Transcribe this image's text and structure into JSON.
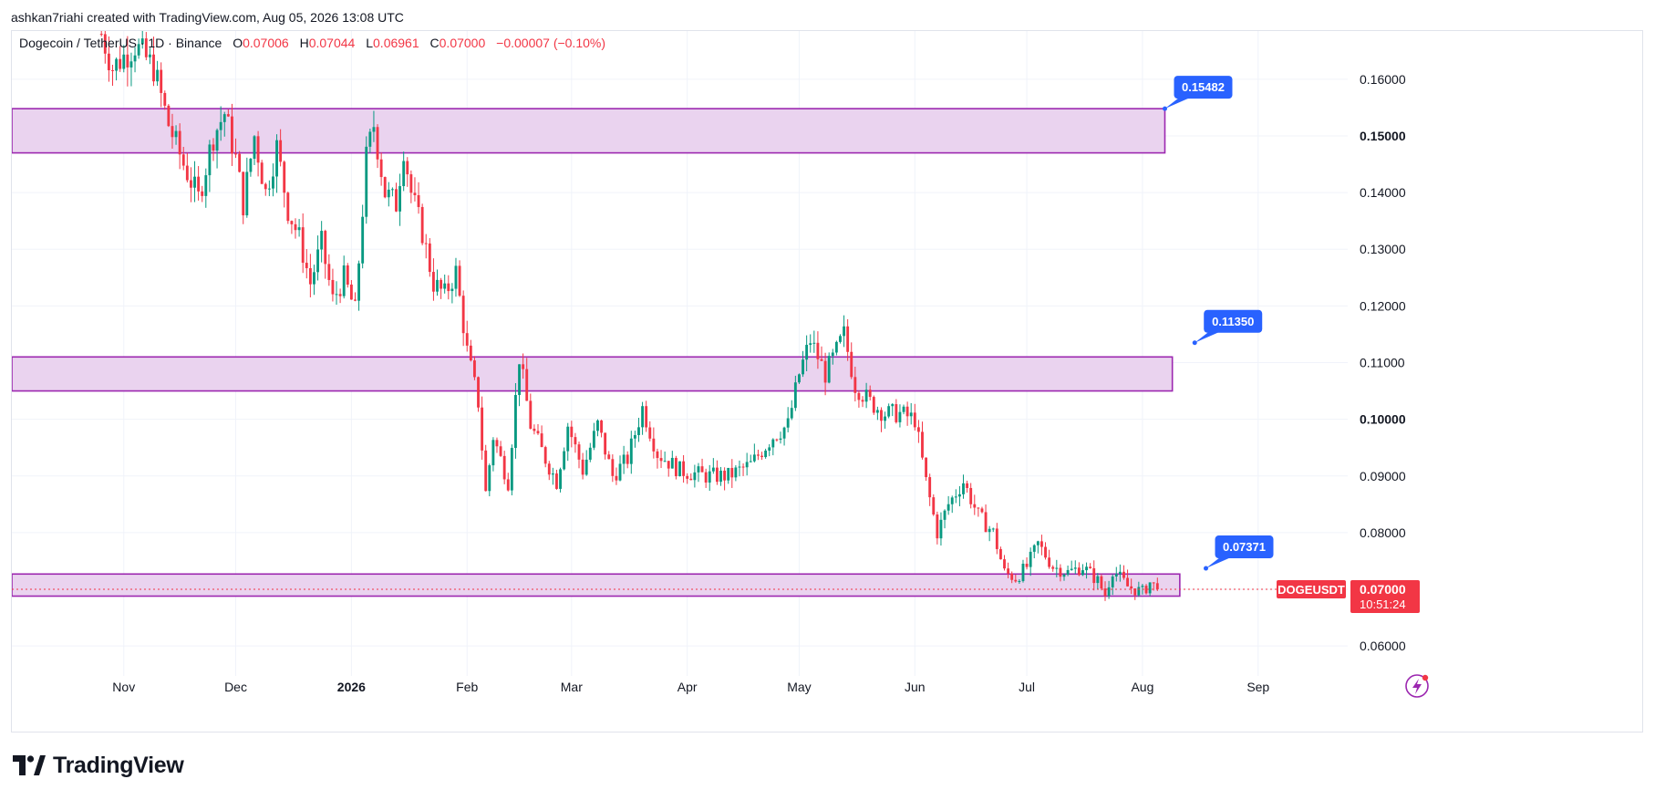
{
  "header": {
    "text": "ashkan7riahi created with TradingView.com, Aug 05, 2026 13:08 UTC"
  },
  "legend": {
    "symbol": "Dogecoin / TetherUS · 1D · Binance",
    "o_label": "O",
    "o_value": "0.07006",
    "h_label": "H",
    "h_value": "0.07044",
    "l_label": "L",
    "l_value": "0.06961",
    "c_label": "C",
    "c_value": "0.07000",
    "change": "−0.00007 (−0.10%)"
  },
  "brand": {
    "name": "TradingView"
  },
  "colors": {
    "up": "#089981",
    "down": "#f23645",
    "zone_fill": "#ead3ef",
    "zone_border": "#9c27b0",
    "callout": "#2962ff",
    "grid": "#f0f3fa",
    "text": "#131722"
  },
  "icons": {
    "logo": "tradingview-logo-icon",
    "flash": "lightning-icon"
  },
  "chart_data": {
    "type": "candlestick",
    "symbol": "DOGEUSDT",
    "interval": "1D",
    "y_ticks": [
      "0.06000",
      "0.07000",
      "0.08000",
      "0.09000",
      "0.10000",
      "0.11000",
      "0.12000",
      "0.13000",
      "0.14000",
      "0.15000",
      "0.16000"
    ],
    "y_ticks_bold": [
      "0.10000",
      "0.15000"
    ],
    "x_ticks": [
      {
        "label": "Nov",
        "date": "2025-11-01"
      },
      {
        "label": "Dec",
        "date": "2025-12-01"
      },
      {
        "label": "2026",
        "date": "2026-01-01",
        "bold": true
      },
      {
        "label": "Feb",
        "date": "2026-02-01"
      },
      {
        "label": "Mar",
        "date": "2026-03-01"
      },
      {
        "label": "Apr",
        "date": "2026-04-01"
      },
      {
        "label": "May",
        "date": "2026-05-01"
      },
      {
        "label": "Jun",
        "date": "2026-06-01"
      },
      {
        "label": "Jul",
        "date": "2026-07-01"
      },
      {
        "label": "Aug",
        "date": "2026-08-01"
      },
      {
        "label": "Sep",
        "date": "2026-09-01"
      }
    ],
    "ylim": [
      0.0515,
      0.1685
    ],
    "xlim": [
      "2025-10-02",
      "2026-09-25"
    ],
    "current_price": {
      "label": "DOGEUSDT",
      "value": "0.07000",
      "countdown": "10:51:24"
    },
    "zones": [
      {
        "top": 0.1548,
        "bottom": 0.147,
        "start": "2025-10-02",
        "end": "2026-08-07"
      },
      {
        "top": 0.111,
        "bottom": 0.105,
        "start": "2025-10-02",
        "end": "2026-08-09"
      },
      {
        "top": 0.0727,
        "bottom": 0.0688,
        "start": "2025-10-02",
        "end": "2026-08-11"
      }
    ],
    "callouts": [
      {
        "label": "0.15482",
        "price": 0.1548,
        "date": "2026-08-07"
      },
      {
        "label": "0.11350",
        "price": 0.1135,
        "date": "2026-08-15"
      },
      {
        "label": "0.07371",
        "price": 0.0737,
        "date": "2026-08-18"
      }
    ],
    "anchors": [
      {
        "date": "2025-10-26",
        "price": 0.168
      },
      {
        "date": "2025-10-29",
        "price": 0.162
      },
      {
        "date": "2025-11-04",
        "price": 0.166
      },
      {
        "date": "2025-11-09",
        "price": 0.162
      },
      {
        "date": "2025-11-13",
        "price": 0.152
      },
      {
        "date": "2025-11-17",
        "price": 0.145
      },
      {
        "date": "2025-11-21",
        "price": 0.139
      },
      {
        "date": "2025-11-25",
        "price": 0.15
      },
      {
        "date": "2025-11-28",
        "price": 0.154
      },
      {
        "date": "2025-12-01",
        "price": 0.146
      },
      {
        "date": "2025-12-03",
        "price": 0.138
      },
      {
        "date": "2025-12-06",
        "price": 0.15
      },
      {
        "date": "2025-12-09",
        "price": 0.14
      },
      {
        "date": "2025-12-12",
        "price": 0.148
      },
      {
        "date": "2025-12-15",
        "price": 0.137
      },
      {
        "date": "2025-12-18",
        "price": 0.132
      },
      {
        "date": "2025-12-21",
        "price": 0.124
      },
      {
        "date": "2025-12-24",
        "price": 0.131
      },
      {
        "date": "2025-12-27",
        "price": 0.121
      },
      {
        "date": "2025-12-30",
        "price": 0.125
      },
      {
        "date": "2026-01-02",
        "price": 0.119
      },
      {
        "date": "2026-01-05",
        "price": 0.146
      },
      {
        "date": "2026-01-07",
        "price": 0.152
      },
      {
        "date": "2026-01-10",
        "price": 0.14
      },
      {
        "date": "2026-01-13",
        "price": 0.138
      },
      {
        "date": "2026-01-15",
        "price": 0.148
      },
      {
        "date": "2026-01-17",
        "price": 0.14
      },
      {
        "date": "2026-01-20",
        "price": 0.133
      },
      {
        "date": "2026-01-23",
        "price": 0.124
      },
      {
        "date": "2026-01-26",
        "price": 0.122
      },
      {
        "date": "2026-01-29",
        "price": 0.126
      },
      {
        "date": "2026-02-01",
        "price": 0.112
      },
      {
        "date": "2026-02-04",
        "price": 0.103
      },
      {
        "date": "2026-02-06",
        "price": 0.087
      },
      {
        "date": "2026-02-08",
        "price": 0.097
      },
      {
        "date": "2026-02-12",
        "price": 0.089
      },
      {
        "date": "2026-02-15",
        "price": 0.111
      },
      {
        "date": "2026-02-18",
        "price": 0.099
      },
      {
        "date": "2026-02-22",
        "price": 0.093
      },
      {
        "date": "2026-02-25",
        "price": 0.089
      },
      {
        "date": "2026-02-28",
        "price": 0.099
      },
      {
        "date": "2026-03-04",
        "price": 0.091
      },
      {
        "date": "2026-03-08",
        "price": 0.099
      },
      {
        "date": "2026-03-12",
        "price": 0.09
      },
      {
        "date": "2026-03-16",
        "price": 0.093
      },
      {
        "date": "2026-03-20",
        "price": 0.102
      },
      {
        "date": "2026-03-24",
        "price": 0.094
      },
      {
        "date": "2026-03-30",
        "price": 0.091
      },
      {
        "date": "2026-04-06",
        "price": 0.09
      },
      {
        "date": "2026-04-12",
        "price": 0.09
      },
      {
        "date": "2026-04-18",
        "price": 0.092
      },
      {
        "date": "2026-04-24",
        "price": 0.097
      },
      {
        "date": "2026-04-28",
        "price": 0.099
      },
      {
        "date": "2026-05-01",
        "price": 0.108
      },
      {
        "date": "2026-05-04",
        "price": 0.114
      },
      {
        "date": "2026-05-08",
        "price": 0.108
      },
      {
        "date": "2026-05-11",
        "price": 0.112
      },
      {
        "date": "2026-05-13",
        "price": 0.115
      },
      {
        "date": "2026-05-16",
        "price": 0.106
      },
      {
        "date": "2026-05-20",
        "price": 0.103
      },
      {
        "date": "2026-05-24",
        "price": 0.101
      },
      {
        "date": "2026-05-28",
        "price": 0.101
      },
      {
        "date": "2026-06-01",
        "price": 0.1
      },
      {
        "date": "2026-06-04",
        "price": 0.089
      },
      {
        "date": "2026-06-07",
        "price": 0.08
      },
      {
        "date": "2026-06-10",
        "price": 0.085
      },
      {
        "date": "2026-06-14",
        "price": 0.089
      },
      {
        "date": "2026-06-18",
        "price": 0.083
      },
      {
        "date": "2026-06-22",
        "price": 0.08
      },
      {
        "date": "2026-06-25",
        "price": 0.073
      },
      {
        "date": "2026-06-28",
        "price": 0.072
      },
      {
        "date": "2026-07-01",
        "price": 0.074
      },
      {
        "date": "2026-07-04",
        "price": 0.078
      },
      {
        "date": "2026-07-08",
        "price": 0.074
      },
      {
        "date": "2026-07-12",
        "price": 0.073
      },
      {
        "date": "2026-07-16",
        "price": 0.074
      },
      {
        "date": "2026-07-20",
        "price": 0.0715
      },
      {
        "date": "2026-07-22",
        "price": 0.069
      },
      {
        "date": "2026-07-24",
        "price": 0.0735
      },
      {
        "date": "2026-07-28",
        "price": 0.0705
      },
      {
        "date": "2026-08-01",
        "price": 0.0695
      },
      {
        "date": "2026-08-03",
        "price": 0.0712
      },
      {
        "date": "2026-08-05",
        "price": 0.07
      }
    ]
  }
}
